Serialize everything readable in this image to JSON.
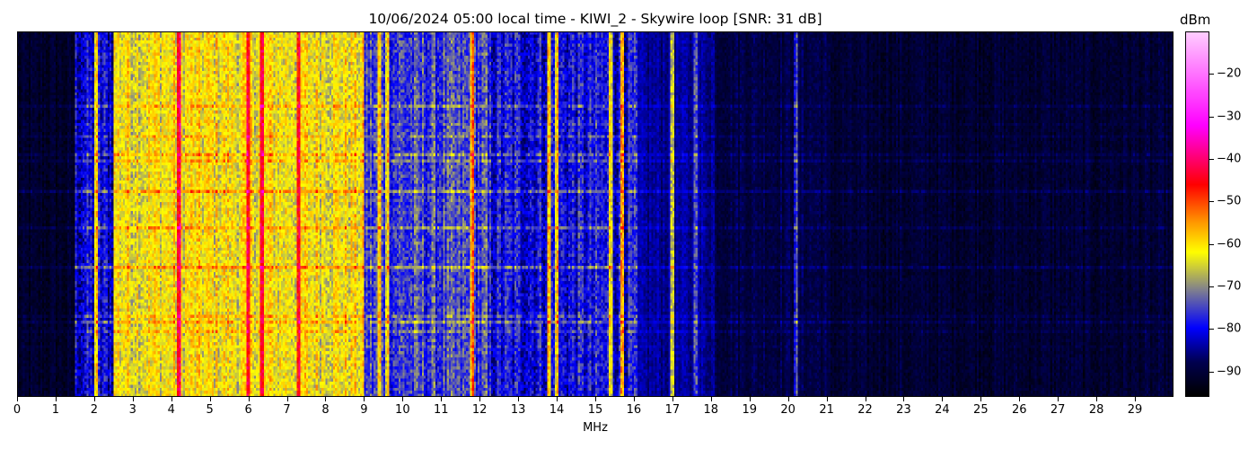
{
  "chart_data": {
    "type": "heatmap",
    "title": "10/06/2024 05:00 local time - KIWI_2 - Skywire loop [SNR: 31 dB]",
    "xlabel": "MHz",
    "ylabel": "",
    "xlim": [
      0,
      30
    ],
    "x_ticks": [
      "0",
      "1",
      "2",
      "3",
      "4",
      "5",
      "6",
      "7",
      "8",
      "9",
      "10",
      "11",
      "12",
      "13",
      "14",
      "15",
      "16",
      "17",
      "18",
      "19",
      "20",
      "21",
      "22",
      "23",
      "24",
      "25",
      "26",
      "27",
      "28",
      "29"
    ],
    "colorbar": {
      "label": "dBm",
      "range": [
        -96,
        -10
      ],
      "ticks": [
        "-20",
        "-30",
        "-40",
        "-50",
        "-60",
        "-70",
        "-80",
        "-90"
      ],
      "tick_values": [
        -20,
        -30,
        -40,
        -50,
        -60,
        -70,
        -80,
        -90
      ],
      "stops": [
        {
          "v": -96,
          "color": "#000000"
        },
        {
          "v": -88,
          "color": "#000050"
        },
        {
          "v": -80,
          "color": "#0000ff"
        },
        {
          "v": -71,
          "color": "#7f7f8f"
        },
        {
          "v": -62,
          "color": "#ffff00"
        },
        {
          "v": -55,
          "color": "#ff9900"
        },
        {
          "v": -46,
          "color": "#ff0000"
        },
        {
          "v": -32,
          "color": "#ff00ff"
        },
        {
          "v": -10,
          "color": "#ffccff"
        }
      ]
    },
    "band_profile_dbm": [
      {
        "from": 0,
        "to": 1.5,
        "level": -92
      },
      {
        "from": 1.5,
        "to": 2.5,
        "level": -81
      },
      {
        "from": 2.5,
        "to": 9,
        "level": -62
      },
      {
        "from": 9,
        "to": 12.2,
        "level": -76
      },
      {
        "from": 12.2,
        "to": 16.1,
        "level": -80
      },
      {
        "from": 16.1,
        "to": 18.1,
        "level": -85
      },
      {
        "from": 18.1,
        "to": 21,
        "level": -89
      },
      {
        "from": 21,
        "to": 30,
        "level": -91
      }
    ],
    "strong_signals": [
      {
        "mhz": 2.05,
        "level": -62
      },
      {
        "mhz": 4.2,
        "level": -45
      },
      {
        "mhz": 6.0,
        "level": -47
      },
      {
        "mhz": 6.35,
        "level": -45
      },
      {
        "mhz": 7.3,
        "level": -48
      },
      {
        "mhz": 9.4,
        "level": -60
      },
      {
        "mhz": 9.6,
        "level": -62
      },
      {
        "mhz": 11.8,
        "level": -55
      },
      {
        "mhz": 13.8,
        "level": -60
      },
      {
        "mhz": 14.0,
        "level": -60
      },
      {
        "mhz": 15.4,
        "level": -62
      },
      {
        "mhz": 15.7,
        "level": -55
      },
      {
        "mhz": 17.0,
        "level": -65
      },
      {
        "mhz": 17.6,
        "level": -70
      },
      {
        "mhz": 20.2,
        "level": -78
      }
    ]
  }
}
